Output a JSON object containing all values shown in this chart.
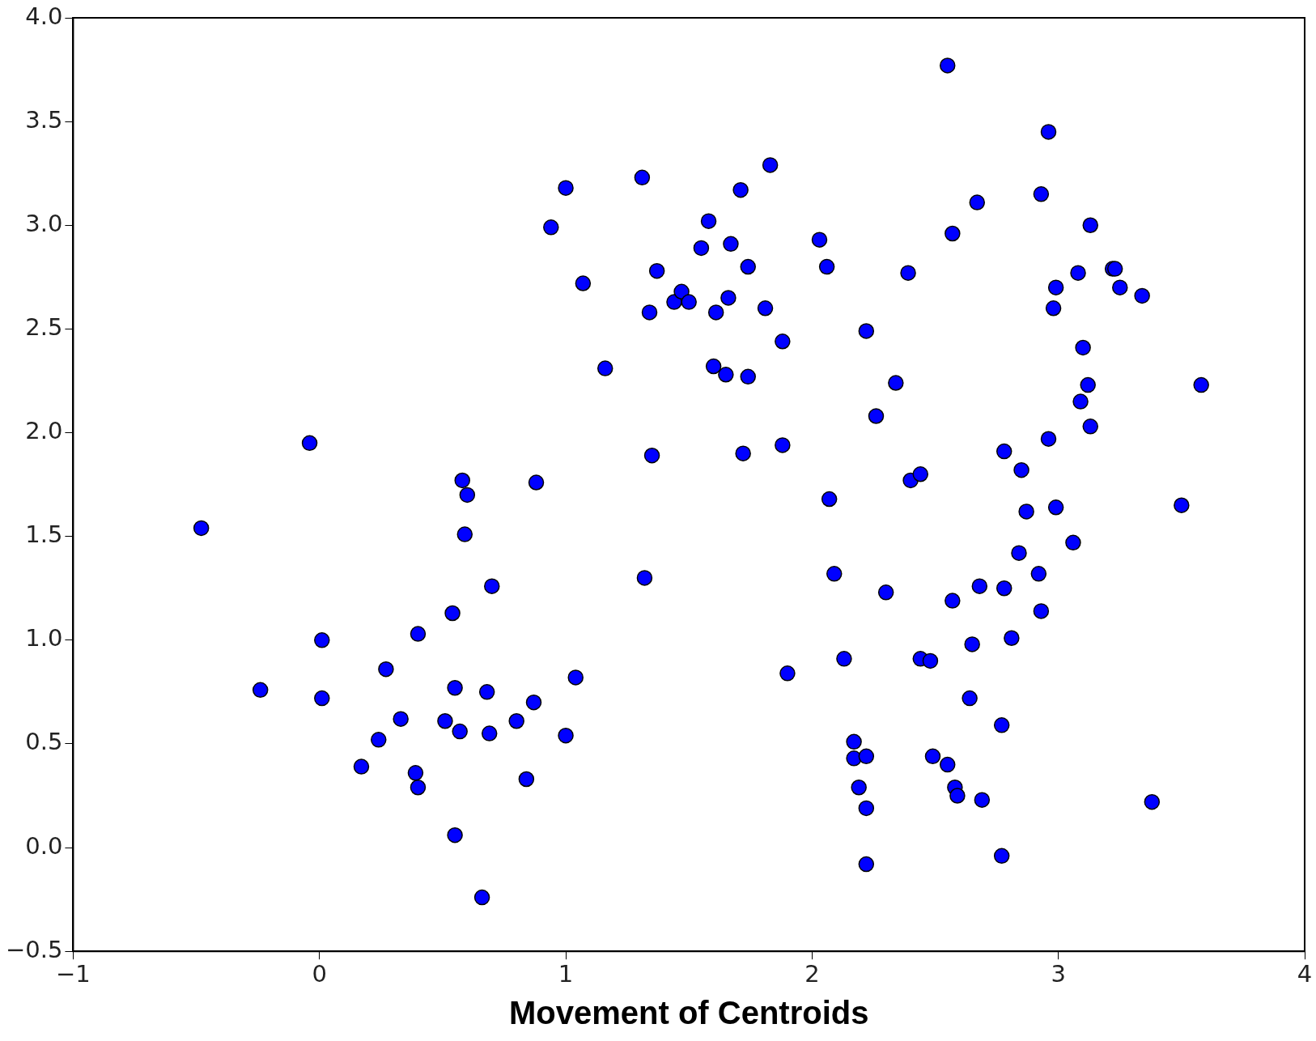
{
  "chart_data": {
    "type": "scatter",
    "xlabel": "Movement of Centroids",
    "marker": "circle",
    "grid": false,
    "legend": false,
    "xlim": [
      -1,
      4
    ],
    "ylim": [
      -0.5,
      4
    ],
    "xticks": [
      {
        "value": -1,
        "label": "−1"
      },
      0,
      1,
      2,
      3,
      4
    ],
    "yticks": [
      {
        "value": -0.5,
        "label": "−0.5"
      },
      {
        "value": 0,
        "label": "0.0"
      },
      0.5,
      {
        "value": 1,
        "label": "1.0"
      },
      1.5,
      {
        "value": 2,
        "label": "2.0"
      },
      2.5,
      {
        "value": 3,
        "label": "3.0"
      },
      3.5,
      {
        "value": 4,
        "label": "4.0"
      }
    ],
    "series": [
      {
        "color": "#0000ff",
        "x": [
          -0.48,
          -0.24,
          -0.04,
          0.01,
          0.01,
          0.17,
          0.24,
          0.27,
          0.33,
          0.39,
          0.4,
          0.4,
          0.51,
          0.54,
          0.55,
          0.55,
          0.57,
          0.58,
          0.6,
          0.59,
          0.66,
          0.68,
          0.69,
          0.7,
          0.8,
          0.84,
          0.87,
          0.88,
          0.94,
          1.0,
          1.0,
          1.04,
          1.07,
          1.16,
          1.31,
          1.32,
          1.34,
          1.35,
          1.37,
          1.44,
          1.47,
          1.5,
          1.55,
          1.58,
          1.6,
          1.61,
          1.65,
          1.66,
          1.67,
          1.71,
          1.72,
          1.74,
          1.74,
          1.81,
          1.83,
          1.88,
          1.88,
          1.9,
          2.03,
          2.06,
          2.07,
          2.09,
          2.13,
          2.17,
          2.17,
          2.19,
          2.22,
          2.22,
          2.22,
          2.22,
          2.26,
          2.3,
          2.34,
          2.39,
          2.4,
          2.44,
          2.44,
          2.48,
          2.49,
          2.55,
          2.55,
          2.57,
          2.57,
          2.58,
          2.59,
          2.64,
          2.65,
          2.67,
          2.68,
          2.69,
          2.77,
          2.78,
          2.77,
          2.78,
          2.81,
          2.84,
          2.85,
          2.87,
          2.92,
          2.93,
          2.93,
          2.96,
          2.96,
          2.98,
          2.99,
          2.99,
          3.06,
          3.08,
          3.09,
          3.1,
          3.12,
          3.13,
          3.13,
          3.22,
          3.23,
          3.25,
          3.34,
          3.38,
          3.5,
          3.58
        ],
        "values": [
          1.54,
          0.76,
          1.95,
          1.0,
          0.72,
          0.39,
          0.52,
          0.86,
          0.62,
          0.36,
          0.29,
          1.03,
          0.61,
          1.13,
          0.06,
          0.77,
          0.56,
          1.77,
          1.7,
          1.51,
          -0.24,
          0.75,
          0.55,
          1.26,
          0.61,
          0.33,
          0.7,
          1.76,
          2.99,
          0.54,
          3.18,
          0.82,
          2.72,
          2.31,
          3.23,
          1.3,
          2.58,
          1.89,
          2.78,
          2.63,
          2.68,
          2.63,
          2.89,
          3.02,
          2.32,
          2.58,
          2.28,
          2.65,
          2.91,
          3.17,
          1.9,
          2.8,
          2.27,
          2.6,
          3.29,
          2.44,
          1.94,
          0.84,
          2.93,
          2.8,
          1.68,
          1.32,
          0.91,
          0.51,
          0.43,
          0.29,
          2.49,
          0.44,
          0.19,
          -0.08,
          2.08,
          1.23,
          2.24,
          2.77,
          1.77,
          1.8,
          0.91,
          0.9,
          0.44,
          3.77,
          0.4,
          1.19,
          2.96,
          0.29,
          0.25,
          0.72,
          0.98,
          3.11,
          1.26,
          0.23,
          0.59,
          1.91,
          -0.04,
          1.25,
          1.01,
          1.42,
          1.82,
          1.62,
          1.32,
          1.14,
          3.15,
          1.97,
          3.45,
          2.6,
          1.64,
          2.7,
          1.47,
          2.77,
          2.15,
          2.41,
          2.23,
          3.0,
          2.03,
          2.79,
          2.79,
          2.7,
          2.66,
          0.22,
          1.65,
          2.23
        ]
      }
    ]
  }
}
